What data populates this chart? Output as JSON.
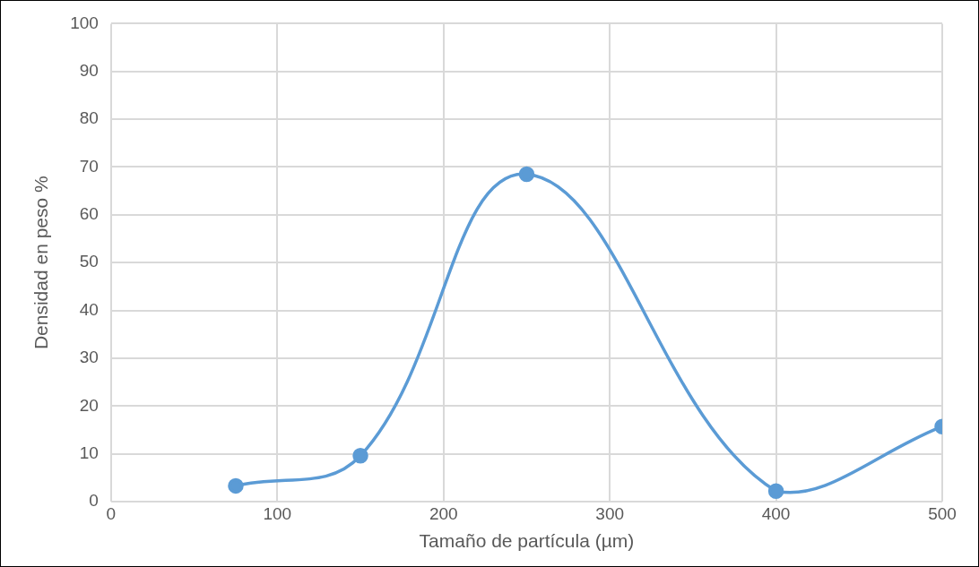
{
  "chart_data": {
    "type": "line",
    "xlabel": "Tamaño de partícula (µm)",
    "ylabel": "Densidad en peso %",
    "x": [
      75,
      150,
      250,
      400,
      500
    ],
    "series": [
      {
        "color": "#5b9bd5",
        "values": [
          3.3,
          9.6,
          68.5,
          2.2,
          15.7
        ]
      }
    ],
    "xlim": [
      0,
      500
    ],
    "xticks": [
      0,
      100,
      200,
      300,
      400,
      500
    ],
    "ylim": [
      0,
      100
    ],
    "yticks": [
      0,
      10,
      20,
      30,
      40,
      50,
      60,
      70,
      80,
      90,
      100
    ],
    "grid": true,
    "legend": false,
    "marker": "circle",
    "line_style": "solid"
  }
}
